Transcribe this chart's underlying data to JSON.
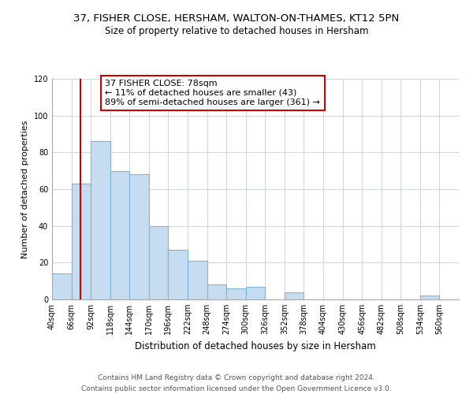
{
  "title": "37, FISHER CLOSE, HERSHAM, WALTON-ON-THAMES, KT12 5PN",
  "subtitle": "Size of property relative to detached houses in Hersham",
  "xlabel": "Distribution of detached houses by size in Hersham",
  "ylabel": "Number of detached properties",
  "bar_values": [
    14,
    63,
    86,
    70,
    68,
    40,
    27,
    21,
    8,
    6,
    7,
    0,
    4,
    0,
    0,
    0,
    0,
    0,
    0,
    2,
    0
  ],
  "bin_edges": [
    40,
    66,
    92,
    118,
    144,
    170,
    196,
    222,
    248,
    274,
    300,
    326,
    352,
    378,
    404,
    430,
    456,
    482,
    508,
    534,
    560,
    586
  ],
  "tick_labels": [
    "40sqm",
    "66sqm",
    "92sqm",
    "118sqm",
    "144sqm",
    "170sqm",
    "196sqm",
    "222sqm",
    "248sqm",
    "274sqm",
    "300sqm",
    "326sqm",
    "352sqm",
    "378sqm",
    "404sqm",
    "430sqm",
    "456sqm",
    "482sqm",
    "508sqm",
    "534sqm",
    "560sqm"
  ],
  "bar_color": "#c6dcf0",
  "bar_edge_color": "#7fb3d9",
  "vline_x": 78,
  "vline_color": "#cc0000",
  "ylim": [
    0,
    120
  ],
  "yticks": [
    0,
    20,
    40,
    60,
    80,
    100,
    120
  ],
  "annotation_title": "37 FISHER CLOSE: 78sqm",
  "annotation_line1": "← 11% of detached houses are smaller (43)",
  "annotation_line2": "89% of semi-detached houses are larger (361) →",
  "annotation_box_color": "#cc0000",
  "footer1": "Contains HM Land Registry data © Crown copyright and database right 2024.",
  "footer2": "Contains public sector information licensed under the Open Government Licence v3.0.",
  "title_fontsize": 9.5,
  "subtitle_fontsize": 8.5,
  "xlabel_fontsize": 8.5,
  "ylabel_fontsize": 8,
  "tick_fontsize": 7,
  "annotation_fontsize": 8,
  "footer_fontsize": 6.5
}
